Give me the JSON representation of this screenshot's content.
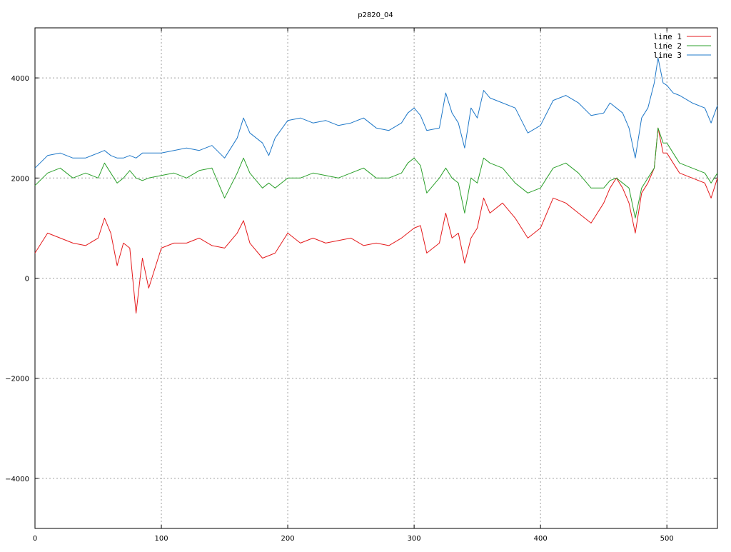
{
  "chart_data": {
    "type": "line",
    "title": "p2820_04",
    "xlabel": "",
    "ylabel": "",
    "xlim": [
      0,
      540
    ],
    "ylim": [
      -5000,
      5000
    ],
    "xticks": [
      0,
      100,
      200,
      300,
      400,
      500
    ],
    "yticks": [
      -4000,
      -2000,
      0,
      2000,
      4000
    ],
    "ytick_labels": [
      "−4000",
      "−2000",
      "0",
      "2000",
      "4000"
    ],
    "grid": true,
    "legend_position": "top-right",
    "colors": {
      "line 1": "#e41a1c",
      "line 2": "#2ca02c",
      "line 3": "#1f78c8",
      "grid": "#a0a0a0"
    },
    "x": [
      0,
      10,
      20,
      30,
      40,
      50,
      55,
      60,
      65,
      70,
      75,
      80,
      85,
      90,
      100,
      110,
      120,
      130,
      140,
      150,
      160,
      165,
      170,
      180,
      185,
      190,
      200,
      210,
      220,
      230,
      240,
      250,
      260,
      270,
      280,
      290,
      295,
      300,
      305,
      310,
      320,
      325,
      330,
      335,
      340,
      345,
      350,
      355,
      360,
      370,
      380,
      390,
      400,
      410,
      420,
      430,
      440,
      450,
      455,
      460,
      465,
      470,
      475,
      480,
      485,
      490,
      493,
      497,
      500,
      505,
      510,
      520,
      530,
      535,
      540
    ],
    "series": [
      {
        "name": "line 1",
        "values": [
          500,
          900,
          800,
          700,
          650,
          800,
          1200,
          900,
          250,
          700,
          600,
          -700,
          400,
          -200,
          600,
          700,
          700,
          800,
          650,
          600,
          900,
          1150,
          700,
          400,
          450,
          500,
          900,
          700,
          800,
          700,
          750,
          800,
          650,
          700,
          650,
          800,
          900,
          1000,
          1050,
          500,
          700,
          1300,
          800,
          900,
          300,
          800,
          1000,
          1600,
          1300,
          1500,
          1200,
          800,
          1000,
          1600,
          1500,
          1300,
          1100,
          1500,
          1800,
          2000,
          1800,
          1500,
          900,
          1700,
          1900,
          2200,
          3000,
          2500,
          2500,
          2300,
          2100,
          2000,
          1900,
          1600,
          2000
        ]
      },
      {
        "name": "line 2",
        "values": [
          1850,
          2100,
          2200,
          2000,
          2100,
          2000,
          2300,
          2100,
          1900,
          2000,
          2150,
          2000,
          1950,
          2000,
          2050,
          2100,
          2000,
          2150,
          2200,
          1600,
          2100,
          2400,
          2100,
          1800,
          1900,
          1800,
          2000,
          2000,
          2100,
          2050,
          2000,
          2100,
          2200,
          2000,
          2000,
          2100,
          2300,
          2400,
          2250,
          1700,
          2000,
          2200,
          2000,
          1900,
          1300,
          2000,
          1900,
          2400,
          2300,
          2200,
          1900,
          1700,
          1800,
          2200,
          2300,
          2100,
          1800,
          1800,
          1950,
          2000,
          1900,
          1800,
          1200,
          1800,
          2000,
          2200,
          3000,
          2700,
          2700,
          2500,
          2300,
          2200,
          2100,
          1900,
          2100
        ]
      },
      {
        "name": "line 3",
        "values": [
          2200,
          2450,
          2500,
          2400,
          2400,
          2500,
          2550,
          2450,
          2400,
          2400,
          2450,
          2400,
          2500,
          2500,
          2500,
          2550,
          2600,
          2550,
          2650,
          2400,
          2800,
          3200,
          2900,
          2700,
          2450,
          2800,
          3150,
          3200,
          3100,
          3150,
          3050,
          3100,
          3200,
          3000,
          2950,
          3100,
          3300,
          3400,
          3250,
          2950,
          3000,
          3700,
          3300,
          3100,
          2600,
          3400,
          3200,
          3750,
          3600,
          3500,
          3400,
          2900,
          3050,
          3550,
          3650,
          3500,
          3250,
          3300,
          3500,
          3400,
          3300,
          3000,
          2400,
          3200,
          3400,
          3900,
          4400,
          3900,
          3850,
          3700,
          3650,
          3500,
          3400,
          3100,
          3450
        ]
      }
    ]
  }
}
